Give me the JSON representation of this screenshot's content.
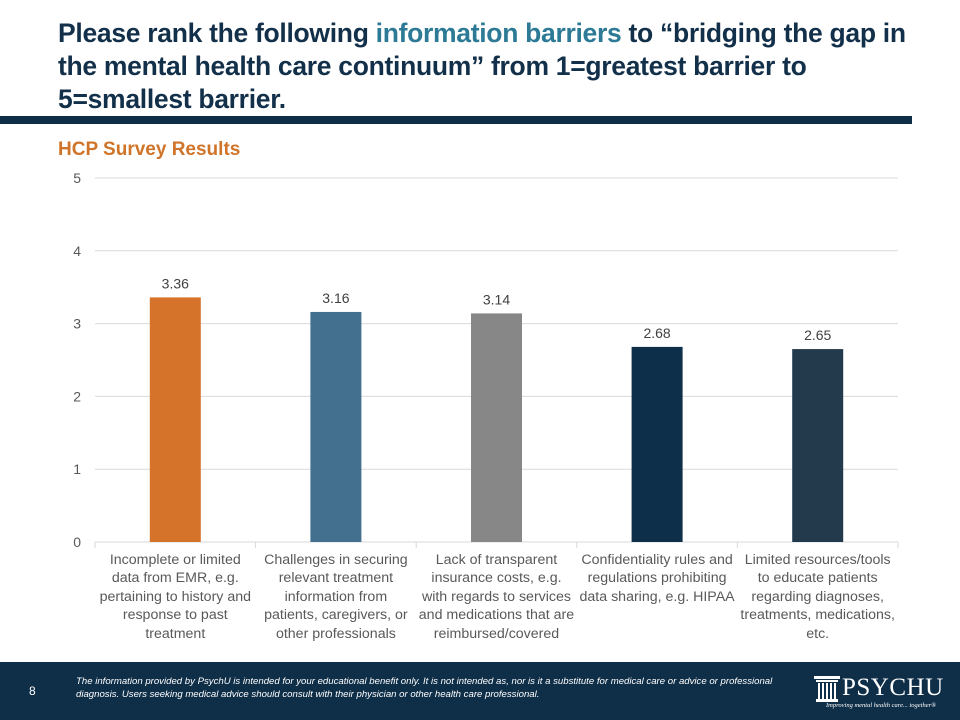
{
  "slide": {
    "title_parts": [
      "Please rank the following ",
      "information barriers",
      " to “bridging the gap in the mental health care continuum” from 1=greatest barrier to 5=smallest barrier."
    ],
    "subtitle": "HCP Survey Results",
    "page_number": "8",
    "disclaimer": "The information provided by PsychU is intended for your educational benefit only. It is not intended as, nor is it a substitute for medical care or advice or professional diagnosis. Users seeking medical advice should consult with their physician or other health care professional.",
    "logo": {
      "name": "PSYCHU",
      "registered": "®",
      "tagline": "Improving mental health care... together®",
      "icon": "column-pillar-icon"
    },
    "colors": {
      "title": "#13304a",
      "highlight": "#2c7a95",
      "subtitle": "#d0742a",
      "footer_bg": "#0f2e48"
    }
  },
  "chart_data": {
    "type": "bar",
    "title": "HCP Survey Results",
    "xlabel": "",
    "ylabel": "",
    "ylim": [
      0,
      5
    ],
    "yticks": [
      0,
      1,
      2,
      3,
      4,
      5
    ],
    "grid": true,
    "legend": "none",
    "categories": [
      "Incomplete or limited data from EMR, e.g. pertaining to history and response to past treatment",
      "Challenges in securing relevant treatment information from patients, caregivers, or other professionals",
      "Lack of transparent insurance costs, e.g. with regards to services and medications that are reimbursed/covered",
      "Confidentiality rules and regulations prohibiting data sharing, e.g. HIPAA",
      "Limited resources/tools to educate patients regarding diagnoses, treatments, medications, etc."
    ],
    "values": [
      3.36,
      3.16,
      3.14,
      2.68,
      2.65
    ],
    "data_labels": [
      "3.36",
      "3.16",
      "3.14",
      "2.68",
      "2.65"
    ],
    "bar_colors": [
      "#d5732a",
      "#44708f",
      "#878787",
      "#0e2f4a",
      "#233a4d"
    ]
  }
}
